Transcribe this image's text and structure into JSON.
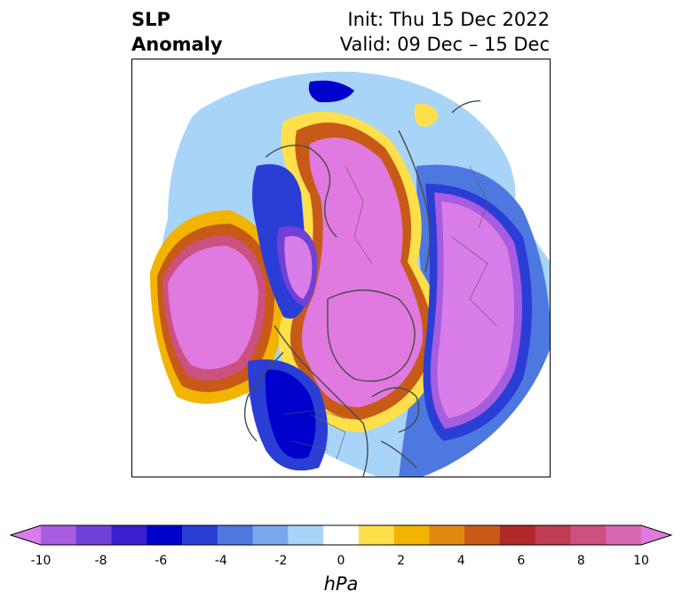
{
  "title": {
    "left_line1": "SLP",
    "left_line2": "Anomaly",
    "right_line1": "Init: Thu 15 Dec 2022",
    "right_line2": "Valid: 09 Dec – 15 Dec"
  },
  "map": {
    "projection": "north-polar-stereographic",
    "field": "sea-level-pressure-anomaly"
  },
  "colorbar": {
    "label": "hPa",
    "ticks": [
      "-10",
      "-8",
      "-6",
      "-4",
      "-2",
      "0",
      "2",
      "4",
      "6",
      "8",
      "10"
    ],
    "tick_values": [
      -10,
      -8,
      -6,
      -4,
      -2,
      0,
      2,
      4,
      6,
      8,
      10
    ],
    "colors": [
      "#d97de8",
      "#a85ce0",
      "#7040d8",
      "#3a20d0",
      "#0000cc",
      "#2a3ed6",
      "#4c78e0",
      "#7aa8ee",
      "#a8d4f8",
      "#ffffff",
      "#ffe04a",
      "#f2b400",
      "#e08a10",
      "#c85a18",
      "#b02828",
      "#c03c50",
      "#cc5080",
      "#d868b4",
      "#e07ae0"
    ],
    "extend": "both"
  }
}
